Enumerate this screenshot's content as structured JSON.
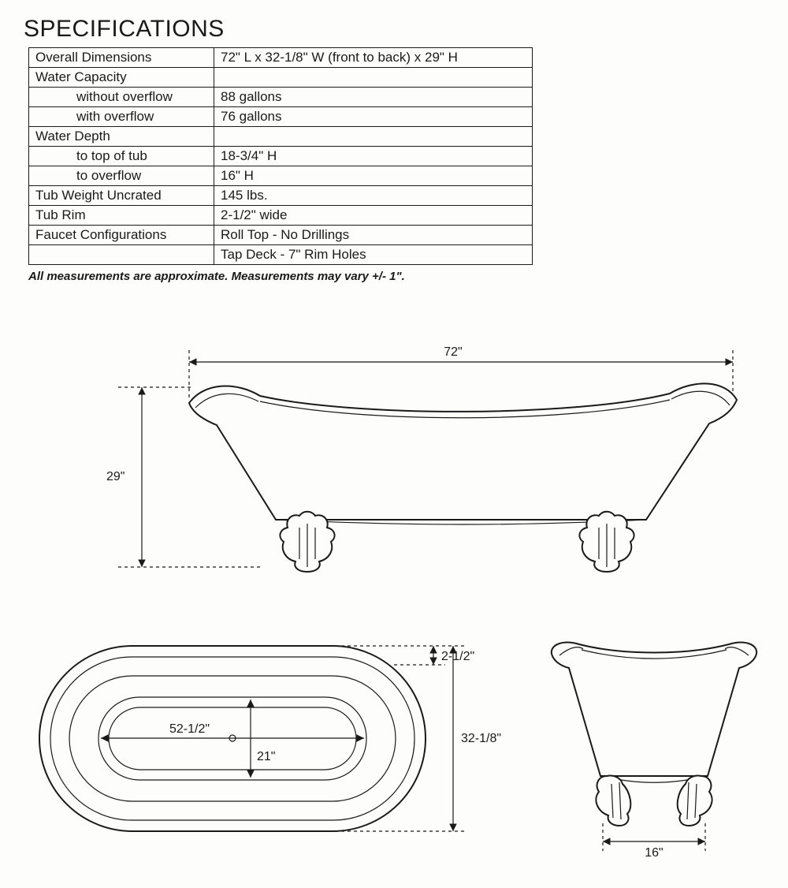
{
  "title": "SPECIFICATIONS",
  "table": {
    "rows": [
      {
        "k": "Overall Dimensions",
        "v": "72\" L x 32-1/8\" W (front to back) x 29\" H"
      },
      {
        "k": "Water Capacity",
        "v": ""
      },
      {
        "k": "without overflow",
        "v": "88 gallons",
        "sub": true
      },
      {
        "k": "with overflow",
        "v": "76 gallons",
        "sub": true
      },
      {
        "k": "Water Depth",
        "v": ""
      },
      {
        "k": "to top of tub",
        "v": "18-3/4\" H",
        "sub": true
      },
      {
        "k": "to overflow",
        "v": "16\" H",
        "sub": true
      },
      {
        "k": "Tub Weight Uncrated",
        "v": "145 lbs."
      },
      {
        "k": "Tub Rim",
        "v": "2-1/2\" wide"
      },
      {
        "k": "Faucet Configurations",
        "v": "Roll Top - No Drillings"
      },
      {
        "k": "",
        "v": "Tap Deck - 7\" Rim Holes",
        "noTopK": true
      }
    ]
  },
  "note": "All measurements are approximate. Measurements may vary +/- 1\".",
  "diagram": {
    "colors": {
      "stroke": "#1a1a1a",
      "bg": "#fdfdfc"
    },
    "side": {
      "width_label": "72\"",
      "height_label": "29\""
    },
    "top": {
      "inner_length": "52-1/2\"",
      "inner_width": "21\"",
      "outer_width": "32-1/8\"",
      "rim": "2-1/2\""
    },
    "end": {
      "base_width": "16\""
    }
  }
}
